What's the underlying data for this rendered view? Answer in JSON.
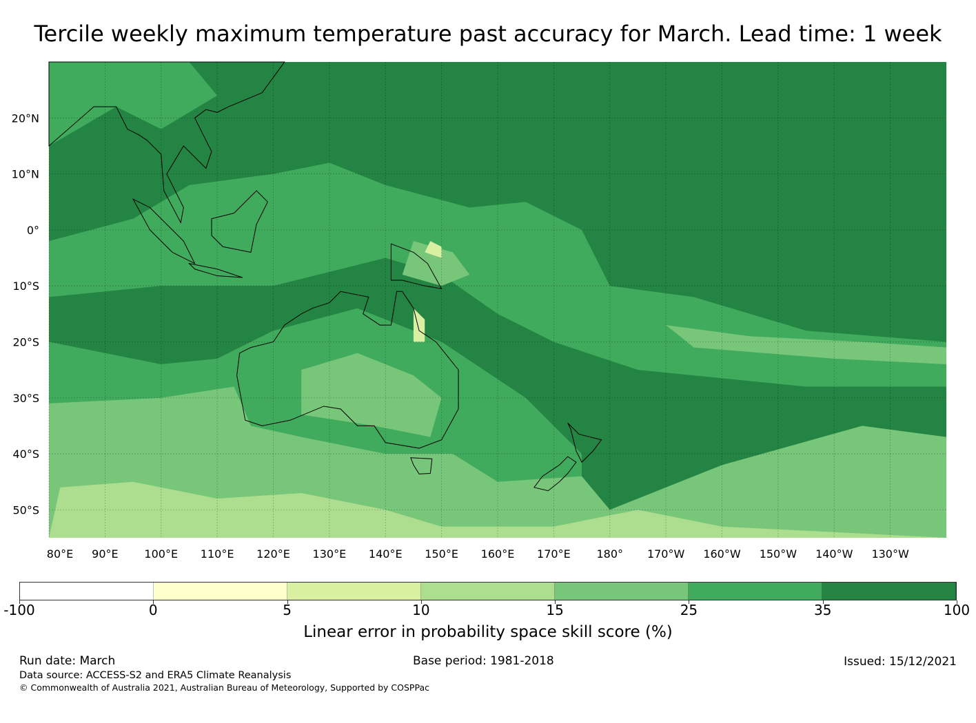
{
  "title": "Tercile weekly maximum temperature past accuracy for March. Lead time: 1 week",
  "map": {
    "lon_range": [
      80,
      240
    ],
    "lat_range": [
      -55,
      30
    ],
    "lon_ticks": [
      {
        "v": 80,
        "label": "80°E"
      },
      {
        "v": 90,
        "label": "90°E"
      },
      {
        "v": 100,
        "label": "100°E"
      },
      {
        "v": 110,
        "label": "110°E"
      },
      {
        "v": 120,
        "label": "120°E"
      },
      {
        "v": 130,
        "label": "130°E"
      },
      {
        "v": 140,
        "label": "140°E"
      },
      {
        "v": 150,
        "label": "150°E"
      },
      {
        "v": 160,
        "label": "160°E"
      },
      {
        "v": 170,
        "label": "170°E"
      },
      {
        "v": 180,
        "label": "180°"
      },
      {
        "v": 190,
        "label": "170°W"
      },
      {
        "v": 200,
        "label": "160°W"
      },
      {
        "v": 210,
        "label": "150°W"
      },
      {
        "v": 220,
        "label": "140°W"
      },
      {
        "v": 230,
        "label": "130°W"
      }
    ],
    "lat_ticks": [
      {
        "v": 20,
        "label": "20°N"
      },
      {
        "v": 10,
        "label": "10°N"
      },
      {
        "v": 0,
        "label": "0°"
      },
      {
        "v": -10,
        "label": "10°S"
      },
      {
        "v": -20,
        "label": "20°S"
      },
      {
        "v": -30,
        "label": "30°S"
      },
      {
        "v": -40,
        "label": "40°S"
      },
      {
        "v": -50,
        "label": "50°S"
      }
    ]
  },
  "colorbar": {
    "colors": [
      "#ffffff",
      "#ffffcc",
      "#d9f0a3",
      "#addd8e",
      "#78c679",
      "#41ab5d",
      "#238443"
    ],
    "ticks": [
      "-100",
      "0",
      "5",
      "10",
      "15",
      "25",
      "35",
      "100"
    ],
    "label": "Linear error in probability space skill score (%)"
  },
  "footer": {
    "run_date": "Run date: March",
    "base_period": "Base period: 1981-2018",
    "issued": "Issued: 15/12/2021",
    "data_source": "Data source: ACCESS-S2 and ERA5 Climate Reanalysis",
    "copyright": "© Commonwealth of Australia 2021, Australian Bureau of Meteorology, Supported by COSPPac"
  }
}
